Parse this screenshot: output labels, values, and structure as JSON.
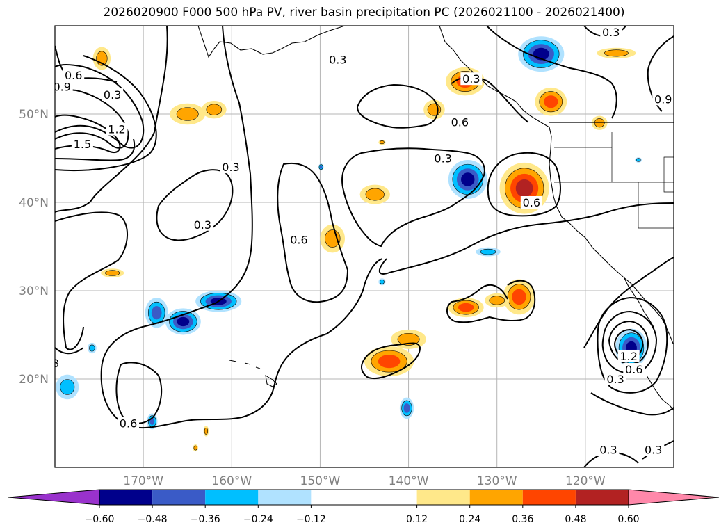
{
  "title": "2026020900 F000 500 hPa PV, river basin precipitation PC (2026021100 - 2026021400)",
  "chart_data": {
    "type": "map-contour",
    "map": {
      "lon_range": [
        -180,
        -110
      ],
      "lat_range": [
        10,
        60
      ],
      "projection": "equirectangular",
      "grid": true
    },
    "x_ticks": [
      {
        "lon": -170,
        "label": "170°W"
      },
      {
        "lon": -160,
        "label": "160°W"
      },
      {
        "lon": -150,
        "label": "150°W"
      },
      {
        "lon": -140,
        "label": "140°W"
      },
      {
        "lon": -130,
        "label": "130°W"
      },
      {
        "lon": -120,
        "label": "120°W"
      }
    ],
    "y_ticks": [
      {
        "lat": 20,
        "label": "20°N"
      },
      {
        "lat": 30,
        "label": "30°N"
      },
      {
        "lat": 40,
        "label": "40°N"
      },
      {
        "lat": 50,
        "label": "50°N"
      }
    ],
    "colorbar": {
      "bounds": [
        -0.72,
        -0.6,
        -0.48,
        -0.36,
        -0.24,
        -0.12,
        0.12,
        0.24,
        0.36,
        0.48,
        0.6,
        0.72
      ],
      "colors": [
        "#9932cc",
        "#00008b",
        "#3a5bc7",
        "#00bfff",
        "#b0e2ff",
        "#ffffff",
        "#ffe88a",
        "#ffa500",
        "#ff4500",
        "#b22222",
        "#ff88aa"
      ],
      "tick_values": [
        -0.6,
        -0.48,
        -0.36,
        -0.24,
        -0.12,
        0.12,
        0.24,
        0.36,
        0.48,
        0.6
      ],
      "tick_labels": [
        "−0.60",
        "−0.48",
        "−0.36",
        "−0.24",
        "−0.12",
        "0.12",
        "0.24",
        "0.36",
        "0.48",
        "0.60"
      ],
      "extend": "both"
    },
    "contour_labels": [
      {
        "text": "0.3",
        "lon": -148.0,
        "lat": 56.2
      },
      {
        "text": "0.6",
        "lon": -177.9,
        "lat": 54.4
      },
      {
        "text": "0.9",
        "lon": -179.2,
        "lat": 53.1
      },
      {
        "text": "0.3",
        "lon": -173.5,
        "lat": 52.2
      },
      {
        "text": "1.2",
        "lon": -173.0,
        "lat": 48.3
      },
      {
        "text": "1.5",
        "lon": -176.9,
        "lat": 46.6
      },
      {
        "text": "0.3",
        "lon": -160.1,
        "lat": 44.0
      },
      {
        "text": "0.3",
        "lon": -163.3,
        "lat": 37.5
      },
      {
        "text": "0.6",
        "lon": -152.4,
        "lat": 35.8
      },
      {
        "text": "0.6",
        "lon": -134.2,
        "lat": 49.1
      },
      {
        "text": "0.3",
        "lon": -136.1,
        "lat": 45.0
      },
      {
        "text": "0.3",
        "lon": -132.9,
        "lat": 54.0
      },
      {
        "text": "0.3",
        "lon": -117.1,
        "lat": 59.3
      },
      {
        "text": "0.9",
        "lon": -111.2,
        "lat": 51.7
      },
      {
        "text": "0.6",
        "lon": -126.1,
        "lat": 40.0
      },
      {
        "text": "0.6",
        "lon": -171.7,
        "lat": 15.0
      },
      {
        "text": "1.2",
        "lon": -115.1,
        "lat": 22.6
      },
      {
        "text": "0.6",
        "lon": -114.5,
        "lat": 21.1
      },
      {
        "text": "0.3",
        "lon": -116.6,
        "lat": 20.0
      },
      {
        "text": "0.3",
        "lon": -117.4,
        "lat": 12.0
      },
      {
        "text": "0.3",
        "lon": -112.3,
        "lat": 12.0
      },
      {
        "text": "3",
        "lon": -179.9,
        "lat": 21.8
      }
    ],
    "precip_patches": [
      {
        "lon": -174.7,
        "lat": 56.3,
        "rx": 1.0,
        "ry": 1.3,
        "level": 0.24
      },
      {
        "lon": -165.0,
        "lat": 50.0,
        "rx": 2.0,
        "ry": 1.2,
        "level": 0.24
      },
      {
        "lon": -162.0,
        "lat": 50.5,
        "rx": 1.4,
        "ry": 1.0,
        "level": 0.24
      },
      {
        "lon": -173.5,
        "lat": 32.0,
        "rx": 1.3,
        "ry": 0.5,
        "level": 0.24
      },
      {
        "lon": -168.5,
        "lat": 27.5,
        "rx": 1.3,
        "ry": 1.7,
        "level": -0.36
      },
      {
        "lon": -175.8,
        "lat": 23.5,
        "rx": 0.5,
        "ry": 0.6,
        "level": -0.24
      },
      {
        "lon": -178.6,
        "lat": 19.1,
        "rx": 1.3,
        "ry": 1.4,
        "level": -0.24
      },
      {
        "lon": -165.5,
        "lat": 26.5,
        "rx": 2.0,
        "ry": 1.5,
        "level": -0.48
      },
      {
        "lon": -161.5,
        "lat": 28.8,
        "rx": 2.6,
        "ry": 1.2,
        "level": -0.48
      },
      {
        "lon": -169.0,
        "lat": 15.2,
        "rx": 0.6,
        "ry": 0.9,
        "level": -0.36
      },
      {
        "lon": -162.9,
        "lat": 14.1,
        "rx": 0.3,
        "ry": 0.6,
        "level": 0.24
      },
      {
        "lon": -164.1,
        "lat": 12.2,
        "rx": 0.3,
        "ry": 0.4,
        "level": 0.24
      },
      {
        "lon": -148.6,
        "lat": 35.9,
        "rx": 1.4,
        "ry": 1.6,
        "level": 0.24
      },
      {
        "lon": -143.8,
        "lat": 40.9,
        "rx": 1.7,
        "ry": 1.1,
        "level": 0.24
      },
      {
        "lon": -142.2,
        "lat": 22.0,
        "rx": 2.8,
        "ry": 1.7,
        "level": 0.36
      },
      {
        "lon": -140.0,
        "lat": 24.5,
        "rx": 2.0,
        "ry": 1.1,
        "level": 0.24
      },
      {
        "lon": -140.2,
        "lat": 16.7,
        "rx": 0.8,
        "ry": 1.2,
        "level": -0.36
      },
      {
        "lon": -133.3,
        "lat": 42.6,
        "rx": 2.2,
        "ry": 2.2,
        "level": -0.48
      },
      {
        "lon": -126.9,
        "lat": 41.6,
        "rx": 2.8,
        "ry": 2.9,
        "level": 0.48
      },
      {
        "lon": -123.9,
        "lat": 51.4,
        "rx": 1.8,
        "ry": 1.6,
        "level": 0.36
      },
      {
        "lon": -133.6,
        "lat": 53.7,
        "rx": 2.2,
        "ry": 1.6,
        "level": 0.36
      },
      {
        "lon": -125.0,
        "lat": 56.8,
        "rx": 2.6,
        "ry": 2.0,
        "level": -0.48
      },
      {
        "lon": -116.5,
        "lat": 56.9,
        "rx": 2.2,
        "ry": 0.6,
        "level": 0.24
      },
      {
        "lon": -137.1,
        "lat": 50.5,
        "rx": 1.2,
        "ry": 1.1,
        "level": 0.24
      },
      {
        "lon": -133.5,
        "lat": 28.1,
        "rx": 2.0,
        "ry": 1.1,
        "level": 0.36
      },
      {
        "lon": -127.5,
        "lat": 29.3,
        "rx": 1.8,
        "ry": 2.0,
        "level": 0.36
      },
      {
        "lon": -130.0,
        "lat": 28.9,
        "rx": 1.4,
        "ry": 0.8,
        "level": 0.24
      },
      {
        "lon": -114.8,
        "lat": 23.5,
        "rx": 1.8,
        "ry": 2.2,
        "level": -0.48
      },
      {
        "lon": -118.4,
        "lat": 49.0,
        "rx": 0.9,
        "ry": 0.8,
        "level": 0.24
      },
      {
        "lon": -131.0,
        "lat": 34.4,
        "rx": 1.4,
        "ry": 0.5,
        "level": -0.24
      },
      {
        "lon": -143.0,
        "lat": 46.8,
        "rx": 0.4,
        "ry": 0.3,
        "level": 0.24
      },
      {
        "lon": -149.9,
        "lat": 44.0,
        "rx": 0.3,
        "ry": 0.4,
        "level": -0.36
      },
      {
        "lon": -143.0,
        "lat": 31.0,
        "rx": 0.4,
        "ry": 0.4,
        "level": -0.24
      },
      {
        "lon": -114.0,
        "lat": 44.8,
        "rx": 0.4,
        "ry": 0.3,
        "level": -0.24
      }
    ]
  }
}
